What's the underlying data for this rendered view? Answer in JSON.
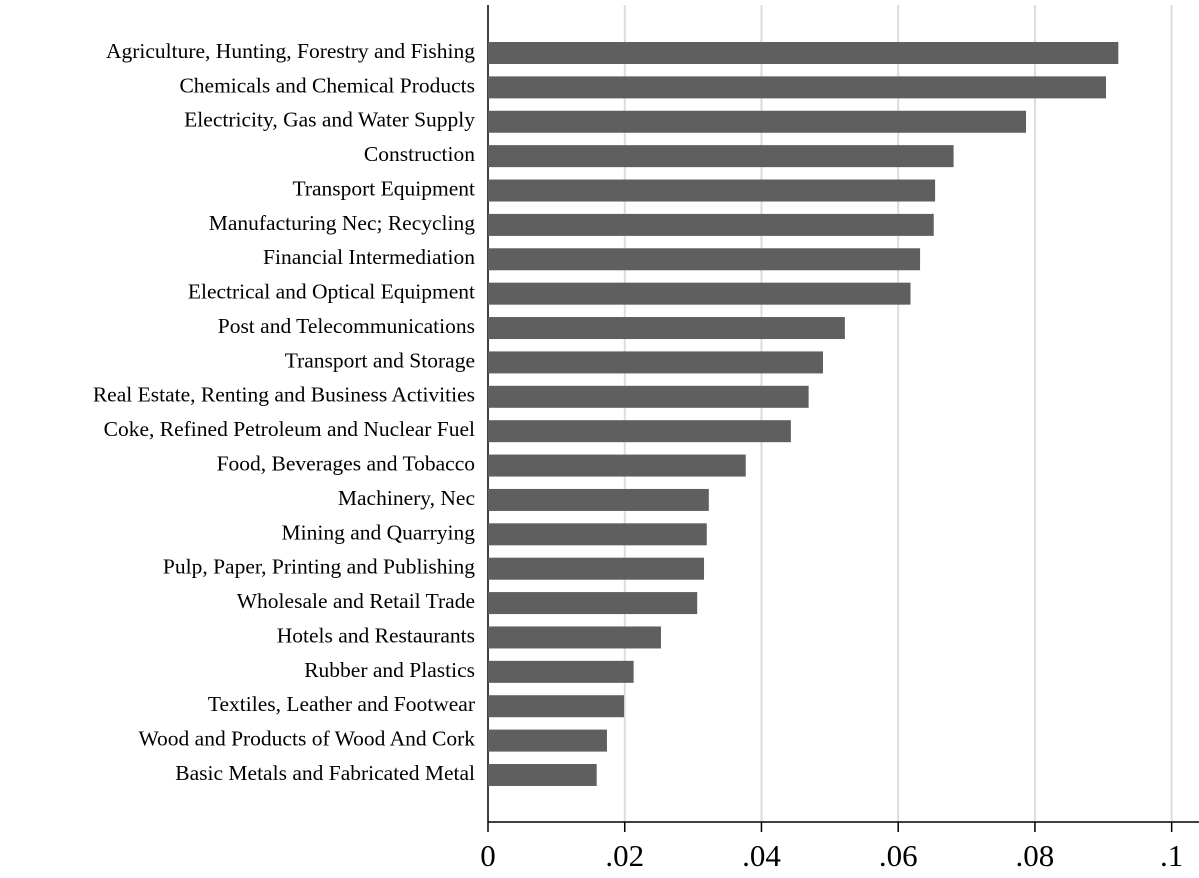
{
  "chart_data": {
    "type": "barh",
    "categories": [
      "Agriculture, Hunting, Forestry and Fishing",
      "Chemicals and Chemical Products",
      "Electricity, Gas and Water Supply",
      "Construction",
      "Transport Equipment",
      "Manufacturing Nec; Recycling",
      "Financial Intermediation",
      "Electrical and Optical Equipment",
      "Post and Telecommunications",
      "Transport and Storage",
      "Real Estate, Renting and Business Activities",
      "Coke, Refined Petroleum and Nuclear Fuel",
      "Food, Beverages and Tobacco",
      "Machinery, Nec",
      "Mining and Quarrying",
      "Pulp, Paper, Printing and Publishing",
      "Wholesale and Retail Trade",
      "Hotels and Restaurants",
      "Rubber and Plastics",
      "Textiles, Leather and Footwear",
      "Wood and Products of Wood And Cork",
      "Basic Metals and Fabricated Metal"
    ],
    "values": [
      0.0922,
      0.0904,
      0.0787,
      0.0681,
      0.0654,
      0.0652,
      0.0632,
      0.0618,
      0.0522,
      0.049,
      0.0469,
      0.0443,
      0.0377,
      0.0323,
      0.032,
      0.0316,
      0.0306,
      0.0253,
      0.0213,
      0.0199,
      0.0174,
      0.0159
    ],
    "color": "#5f5f5f",
    "xlim": [
      0,
      0.104
    ],
    "xticks": [
      {
        "value": 0,
        "label": "0"
      },
      {
        "value": 0.02,
        "label": ".02"
      },
      {
        "value": 0.04,
        "label": ".04"
      },
      {
        "value": 0.06,
        "label": ".06"
      },
      {
        "value": 0.08,
        "label": ".08"
      },
      {
        "value": 0.1,
        "label": ".1"
      }
    ],
    "grid": true
  }
}
